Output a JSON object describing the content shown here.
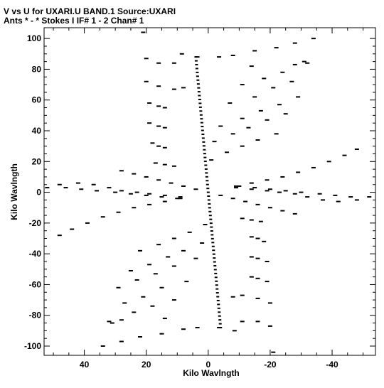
{
  "chart_data": {
    "type": "scatter",
    "title": "V vs U for UXARI.U BAND.1   Source:UXARI",
    "subtitle": "Ants * - *     Stokes I  IF# 1 - 2  Chan# 1",
    "xlabel": "Kilo Wavlngth",
    "ylabel": "Kilo Wavlngth",
    "xlim": [
      53,
      -54
    ],
    "ylim": [
      -106,
      107
    ],
    "x_ticks": [
      40,
      20,
      0,
      -20,
      -40
    ],
    "x_tick_labels": [
      "40",
      "20",
      "0",
      "-20",
      "-40"
    ],
    "y_ticks": [
      100,
      80,
      60,
      40,
      20,
      0,
      -20,
      -40,
      -60,
      -80,
      -100
    ],
    "y_tick_labels": [
      "100",
      "80",
      "60",
      "40",
      "20",
      "0",
      "-20",
      "-40",
      "-60",
      "-80",
      "-100"
    ],
    "grid": false,
    "legend": "none",
    "color": "#000000",
    "points_description": "uv coverage: points mirrored about origin (u,v) and (-u,-v); arms radiate from the centre",
    "series": [
      {
        "points": [
          [
            21,
            104
          ],
          [
            8.5,
            90
          ],
          [
            3.5,
            88
          ],
          [
            -3.5,
            88
          ],
          [
            -8,
            89
          ],
          [
            -15,
            92
          ],
          [
            -22,
            94
          ],
          [
            -28,
            97
          ],
          [
            -34,
            100
          ],
          [
            20,
            87
          ],
          [
            16,
            84
          ],
          [
            11,
            84
          ],
          [
            -14,
            82
          ],
          [
            -28,
            83
          ],
          [
            -32,
            84
          ],
          [
            20,
            72
          ],
          [
            16,
            69
          ],
          [
            11,
            67
          ],
          [
            8,
            68
          ],
          [
            -11,
            70
          ],
          [
            -18,
            74
          ],
          [
            -24,
            78
          ],
          [
            -31,
            85
          ],
          [
            19,
            58
          ],
          [
            16,
            56
          ],
          [
            14,
            55
          ],
          [
            -7,
            58
          ],
          [
            -15,
            62
          ],
          [
            -21,
            68
          ],
          [
            -27,
            72
          ],
          [
            19,
            45
          ],
          [
            16,
            43
          ],
          [
            14,
            42
          ],
          [
            -4,
            43
          ],
          [
            -11,
            48
          ],
          [
            -17,
            53
          ],
          [
            -23,
            57
          ],
          [
            -29,
            62
          ],
          [
            18,
            32
          ],
          [
            16,
            30
          ],
          [
            14,
            29
          ],
          [
            -2,
            33
          ],
          [
            -8,
            38
          ],
          [
            -13,
            42
          ],
          [
            -19,
            47
          ],
          [
            -25,
            51
          ],
          [
            17,
            19
          ],
          [
            14,
            18
          ],
          [
            11,
            17
          ],
          [
            -1,
            21
          ],
          [
            -6,
            26
          ],
          [
            -11,
            30
          ],
          [
            -16,
            34
          ],
          [
            -22,
            38
          ],
          [
            48,
            5
          ],
          [
            42,
            6
          ],
          [
            37,
            5
          ],
          [
            32,
            3
          ],
          [
            28,
            1
          ],
          [
            23,
            0
          ],
          [
            19,
            -1
          ],
          [
            14,
            -2
          ],
          [
            9,
            -3
          ],
          [
            -9,
            4
          ],
          [
            -14,
            6
          ],
          [
            -19,
            8
          ],
          [
            -24,
            10
          ],
          [
            -29,
            13
          ],
          [
            -34,
            16
          ],
          [
            -39,
            20
          ],
          [
            -44,
            24
          ],
          [
            -48,
            28
          ],
          [
            52,
            3
          ],
          [
            46,
            3
          ],
          [
            41,
            2
          ],
          [
            36,
            1
          ],
          [
            30,
            0
          ],
          [
            25,
            -1
          ],
          [
            20,
            -2
          ],
          [
            15,
            -3
          ],
          [
            10,
            -4
          ],
          [
            28,
            14
          ],
          [
            24,
            12
          ],
          [
            20,
            10
          ],
          [
            16,
            8
          ],
          [
            12,
            6
          ],
          [
            8,
            4
          ],
          [
            4,
            2
          ],
          [
            -4,
            -2
          ],
          [
            -8,
            -4
          ],
          [
            -12,
            -6
          ],
          [
            -16,
            -8
          ],
          [
            -20,
            -10
          ],
          [
            -24,
            -12
          ],
          [
            -28,
            -14
          ],
          [
            -48,
            -5
          ],
          [
            -42,
            -6
          ],
          [
            -37,
            -5
          ],
          [
            -32,
            -3
          ],
          [
            -28,
            -1
          ],
          [
            -23,
            0
          ],
          [
            -19,
            1
          ],
          [
            -14,
            2
          ],
          [
            -9,
            3
          ],
          [
            9,
            -4
          ],
          [
            14,
            -6
          ],
          [
            19,
            -8
          ],
          [
            24,
            -10
          ],
          [
            29,
            -13
          ],
          [
            34,
            -16
          ],
          [
            39,
            -20
          ],
          [
            44,
            -24
          ],
          [
            48,
            -28
          ],
          [
            -52,
            -3
          ],
          [
            -46,
            -3
          ],
          [
            -41,
            -2
          ],
          [
            -36,
            -1
          ],
          [
            -30,
            0
          ],
          [
            -25,
            1
          ],
          [
            -20,
            2
          ],
          [
            -15,
            3
          ],
          [
            -10,
            4
          ],
          [
            -17,
            -19
          ],
          [
            -14,
            -18
          ],
          [
            -11,
            -17
          ],
          [
            1,
            -21
          ],
          [
            6,
            -26
          ],
          [
            11,
            -30
          ],
          [
            16,
            -34
          ],
          [
            22,
            -38
          ],
          [
            -18,
            -32
          ],
          [
            -16,
            -30
          ],
          [
            -14,
            -29
          ],
          [
            2,
            -33
          ],
          [
            8,
            -38
          ],
          [
            13,
            -42
          ],
          [
            19,
            -47
          ],
          [
            25,
            -51
          ],
          [
            -19,
            -45
          ],
          [
            -16,
            -43
          ],
          [
            -14,
            -42
          ],
          [
            4,
            -43
          ],
          [
            11,
            -48
          ],
          [
            17,
            -53
          ],
          [
            23,
            -57
          ],
          [
            29,
            -62
          ],
          [
            -19,
            -58
          ],
          [
            -16,
            -56
          ],
          [
            -14,
            -55
          ],
          [
            7,
            -58
          ],
          [
            15,
            -62
          ],
          [
            21,
            -68
          ],
          [
            27,
            -72
          ],
          [
            -20,
            -72
          ],
          [
            -16,
            -69
          ],
          [
            -11,
            -67
          ],
          [
            -8,
            -68
          ],
          [
            11,
            -70
          ],
          [
            18,
            -74
          ],
          [
            24,
            -78
          ],
          [
            31,
            -85
          ],
          [
            -20,
            -87
          ],
          [
            -16,
            -84
          ],
          [
            -11,
            -84
          ],
          [
            14,
            -82
          ],
          [
            28,
            -83
          ],
          [
            32,
            -84
          ],
          [
            -21,
            -104
          ],
          [
            -8.5,
            -90
          ],
          [
            -3.5,
            -88
          ],
          [
            3.5,
            -88
          ],
          [
            8,
            -89
          ],
          [
            15,
            -92
          ],
          [
            22,
            -94
          ],
          [
            28,
            -97
          ],
          [
            34,
            -100
          ]
        ]
      }
    ]
  }
}
